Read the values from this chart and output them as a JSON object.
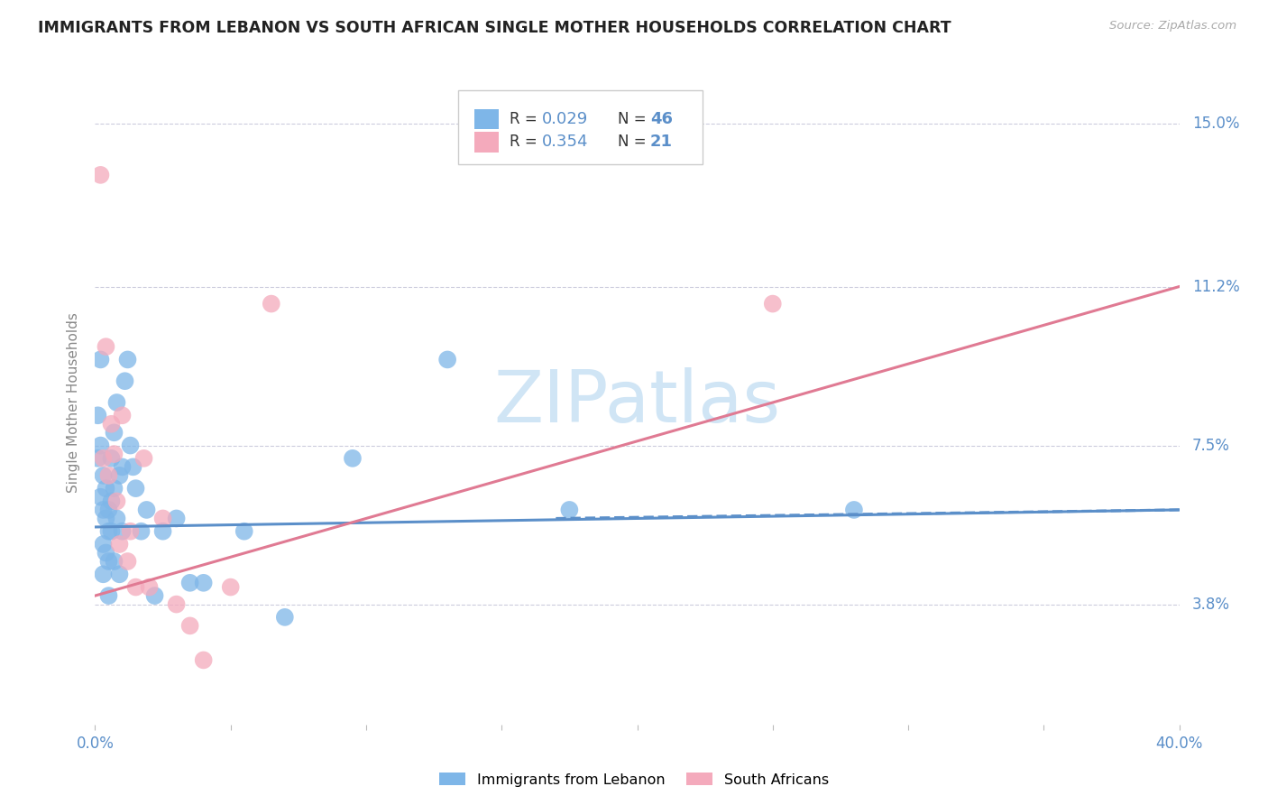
{
  "title": "IMMIGRANTS FROM LEBANON VS SOUTH AFRICAN SINGLE MOTHER HOUSEHOLDS CORRELATION CHART",
  "source": "Source: ZipAtlas.com",
  "ylabel": "Single Mother Households",
  "xlim": [
    0.0,
    0.4
  ],
  "ylim": [
    0.01,
    0.16
  ],
  "xticks": [
    0.0,
    0.05,
    0.1,
    0.15,
    0.2,
    0.25,
    0.3,
    0.35,
    0.4
  ],
  "xtick_labels": [
    "0.0%",
    "",
    "",
    "",
    "",
    "",
    "",
    "",
    "40.0%"
  ],
  "ytick_labels_right": [
    "3.8%",
    "7.5%",
    "11.2%",
    "15.0%"
  ],
  "ytick_values_right": [
    0.038,
    0.075,
    0.112,
    0.15
  ],
  "legend_R1": "0.029",
  "legend_N1": "46",
  "legend_R2": "0.354",
  "legend_N2": "21",
  "blue_color": "#7EB6E8",
  "pink_color": "#F4AABC",
  "blue_trend_color": "#5B8FC9",
  "pink_trend_color": "#E07A93",
  "title_color": "#222222",
  "axis_label_color": "#5B8FC9",
  "tick_label_color": "#333333",
  "watermark_color": "#D0E5F5",
  "grid_color": "#CCCCDD",
  "background_color": "#FFFFFF",
  "blue_scatter_x": [
    0.001,
    0.001,
    0.002,
    0.002,
    0.002,
    0.003,
    0.003,
    0.003,
    0.003,
    0.004,
    0.004,
    0.004,
    0.005,
    0.005,
    0.005,
    0.005,
    0.006,
    0.006,
    0.006,
    0.007,
    0.007,
    0.007,
    0.008,
    0.008,
    0.009,
    0.009,
    0.01,
    0.01,
    0.011,
    0.012,
    0.013,
    0.014,
    0.015,
    0.017,
    0.019,
    0.022,
    0.025,
    0.03,
    0.035,
    0.04,
    0.055,
    0.07,
    0.095,
    0.13,
    0.175,
    0.28
  ],
  "blue_scatter_y": [
    0.082,
    0.072,
    0.095,
    0.075,
    0.063,
    0.068,
    0.06,
    0.052,
    0.045,
    0.065,
    0.058,
    0.05,
    0.06,
    0.055,
    0.048,
    0.04,
    0.072,
    0.062,
    0.055,
    0.078,
    0.065,
    0.048,
    0.085,
    0.058,
    0.068,
    0.045,
    0.07,
    0.055,
    0.09,
    0.095,
    0.075,
    0.07,
    0.065,
    0.055,
    0.06,
    0.04,
    0.055,
    0.058,
    0.043,
    0.043,
    0.055,
    0.035,
    0.072,
    0.095,
    0.06,
    0.06
  ],
  "pink_scatter_x": [
    0.002,
    0.003,
    0.004,
    0.005,
    0.006,
    0.007,
    0.008,
    0.009,
    0.01,
    0.012,
    0.013,
    0.015,
    0.018,
    0.02,
    0.025,
    0.03,
    0.035,
    0.04,
    0.05,
    0.065,
    0.25
  ],
  "pink_scatter_y": [
    0.138,
    0.072,
    0.098,
    0.068,
    0.08,
    0.073,
    0.062,
    0.052,
    0.082,
    0.048,
    0.055,
    0.042,
    0.072,
    0.042,
    0.058,
    0.038,
    0.033,
    0.025,
    0.042,
    0.108,
    0.108
  ],
  "blue_trend_x": [
    0.0,
    0.4
  ],
  "blue_trend_y": [
    0.056,
    0.06
  ],
  "pink_trend_x": [
    0.0,
    0.4
  ],
  "pink_trend_y": [
    0.04,
    0.112
  ]
}
